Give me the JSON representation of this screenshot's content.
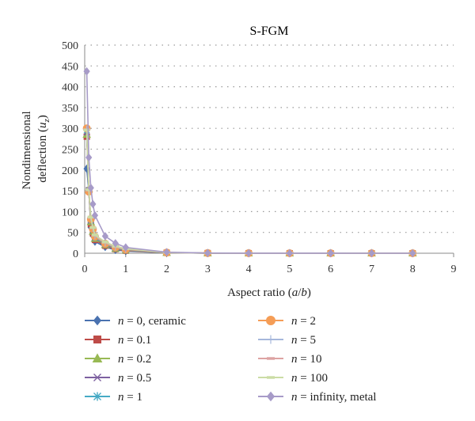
{
  "chart_data": {
    "type": "line",
    "title": "S-FGM",
    "xlabel": "Aspect ratio (a/b)",
    "ylabel": "Nondimensional deflection (uz)",
    "xlim": [
      0,
      9
    ],
    "ylim": [
      0,
      500
    ],
    "xticks": [
      0,
      1,
      2,
      3,
      4,
      5,
      6,
      7,
      8,
      9
    ],
    "yticks": [
      0,
      50,
      100,
      150,
      200,
      250,
      300,
      350,
      400,
      450,
      500
    ],
    "grid": "horizontal dotted",
    "legend_placement": "bottom, two columns",
    "x": [
      0.05,
      0.1,
      0.15,
      0.2,
      0.25,
      0.5,
      0.75,
      1,
      2,
      3,
      4,
      5,
      6,
      7,
      8
    ],
    "series": [
      {
        "name": "n = 0, ceramic",
        "n_value": "0",
        "suffix": ", ceramic",
        "color": "#4a72b0",
        "marker": "diamond",
        "values": [
          203,
          150,
          62,
          42,
          28,
          15,
          8,
          5,
          1,
          0.3,
          0.1,
          0.05,
          0.03,
          0.02,
          0.01
        ]
      },
      {
        "name": "n = 0.1",
        "n_value": "0.1",
        "suffix": "",
        "color": "#be4b48",
        "marker": "square",
        "values": [
          280,
          150,
          70,
          48,
          32,
          18,
          10,
          6,
          1.2,
          0.3,
          0.1,
          0.05,
          0.03,
          0.02,
          0.01
        ]
      },
      {
        "name": "n = 0.2",
        "n_value": "0.2",
        "suffix": "",
        "color": "#98b954",
        "marker": "triangle",
        "values": [
          285,
          155,
          75,
          52,
          35,
          20,
          11,
          7,
          1.3,
          0.3,
          0.1,
          0.05,
          0.03,
          0.02,
          0.01
        ]
      },
      {
        "name": "n = 0.5",
        "n_value": "0.5",
        "suffix": "",
        "color": "#7d60a0",
        "marker": "x",
        "values": [
          290,
          152,
          78,
          55,
          37,
          21,
          12,
          7.5,
          1.4,
          0.3,
          0.1,
          0.05,
          0.03,
          0.02,
          0.01
        ]
      },
      {
        "name": "n = 1",
        "n_value": "1",
        "suffix": "",
        "color": "#46aac5",
        "marker": "star",
        "values": [
          295,
          150,
          80,
          57,
          38,
          22,
          13,
          8,
          1.5,
          0.35,
          0.1,
          0.05,
          0.03,
          0.02,
          0.01
        ]
      },
      {
        "name": "n = 2",
        "n_value": "2",
        "suffix": "",
        "color": "#f59d56",
        "marker": "circle",
        "values": [
          300,
          148,
          82,
          58,
          40,
          23,
          14,
          9,
          1.6,
          0.4,
          0.12,
          0.05,
          0.03,
          0.02,
          0.01
        ]
      },
      {
        "name": "n = 5",
        "n_value": "5",
        "suffix": "",
        "color": "#a6b7db",
        "marker": "plus",
        "values": [
          298,
          150,
          85,
          60,
          42,
          25,
          15,
          10,
          1.8,
          0.4,
          0.12,
          0.05,
          0.03,
          0.02,
          0.01
        ]
      },
      {
        "name": "n = 10",
        "n_value": "10",
        "suffix": "",
        "color": "#dda3a2",
        "marker": "dash",
        "values": [
          297,
          152,
          86,
          61,
          43,
          26,
          16,
          10.5,
          1.9,
          0.4,
          0.12,
          0.05,
          0.03,
          0.02,
          0.01
        ]
      },
      {
        "name": "n = 100",
        "n_value": "100",
        "suffix": "",
        "color": "#cbdca5",
        "marker": "dash",
        "values": [
          296,
          153,
          87,
          62,
          44,
          27,
          17,
          11,
          2,
          0.4,
          0.12,
          0.05,
          0.03,
          0.02,
          0.01
        ]
      },
      {
        "name": "n = infinity, metal",
        "n_value": "infinity",
        "suffix": ", metal",
        "color": "#a79bc8",
        "marker": "diamond",
        "values": [
          437,
          230,
          157,
          118,
          91,
          41,
          24,
          14,
          2.5,
          0.5,
          0.15,
          0.06,
          0.03,
          0.02,
          0.01
        ]
      }
    ]
  }
}
